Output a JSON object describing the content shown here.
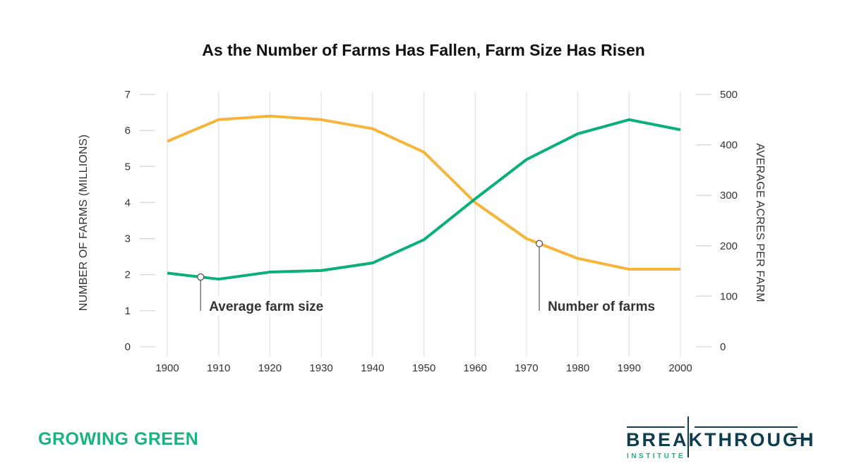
{
  "title": "As the Number of Farms Has Fallen, Farm Size Has Risen",
  "footer": {
    "left_brand": "GROWING GREEN",
    "logo_text": "BREAKTHROUGH",
    "logo_subtext": "INSTITUTE"
  },
  "colors": {
    "orange": "#f6b53a",
    "green": "#0aaf7c",
    "logo_dark": "#0e3d4f",
    "logo_green": "#1bb27e"
  },
  "chart_data": {
    "type": "line",
    "title": "As the Number of Farms Has Fallen, Farm Size Has Risen",
    "x": [
      1900,
      1910,
      1920,
      1930,
      1940,
      1950,
      1960,
      1970,
      1980,
      1990,
      2000
    ],
    "x_ticks": [
      "1900",
      "1910",
      "1920",
      "1930",
      "1940",
      "1950",
      "1960",
      "1970",
      "1980",
      "1990",
      "2000"
    ],
    "ylabel_left": "NUMBER OF FARMS (MILLIONS)",
    "ylabel_right": "AVERAGE ACRES PER FARM",
    "ylim_left": [
      0,
      7
    ],
    "ylim_right": [
      0,
      500
    ],
    "y_ticks_left": [
      "0",
      "1",
      "2",
      "3",
      "4",
      "5",
      "6",
      "7"
    ],
    "y_ticks_right": [
      "0",
      "100",
      "200",
      "300",
      "400",
      "500"
    ],
    "grid": "vertical",
    "series": [
      {
        "name": "Number of farms",
        "axis": "left",
        "color": "#f6b53a",
        "values": [
          5.7,
          6.3,
          6.4,
          6.3,
          6.05,
          5.4,
          4.0,
          3.0,
          2.45,
          2.15,
          2.15
        ],
        "label_x": 1972.5
      },
      {
        "name": "Average farm size",
        "axis": "right",
        "color": "#0aaf7c",
        "values": [
          146,
          134,
          148,
          151,
          166,
          212,
          293,
          371,
          422,
          450,
          430
        ],
        "label_x": 1906.5
      }
    ]
  }
}
